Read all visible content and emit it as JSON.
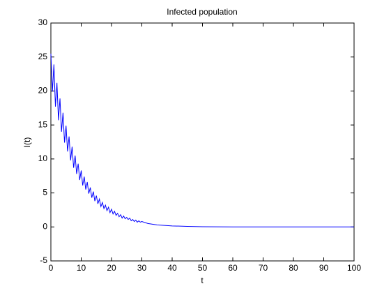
{
  "chart_data": {
    "type": "line",
    "title": "Infected population",
    "x_label": "t",
    "y_label": "I(t)",
    "x": [
      0,
      0.5,
      1,
      1.5,
      2,
      2.5,
      3,
      3.5,
      4,
      4.5,
      5,
      5.5,
      6,
      6.5,
      7,
      7.5,
      8,
      8.5,
      9,
      9.5,
      10,
      10.5,
      11,
      11.5,
      12,
      12.5,
      13,
      13.5,
      14,
      14.5,
      15,
      15.5,
      16,
      16.5,
      17,
      17.5,
      18,
      18.5,
      19,
      19.5,
      20,
      20.5,
      21,
      21.5,
      22,
      22.5,
      23,
      23.5,
      24,
      24.5,
      25,
      25.5,
      26,
      26.5,
      27,
      27.5,
      28,
      28.5,
      29,
      29.5,
      30,
      32,
      35,
      40,
      45,
      50,
      55,
      60,
      70,
      80,
      90,
      100
    ],
    "series": [
      {
        "name": "I(t)",
        "color": "#0000ff",
        "values": [
          25.5,
          19.9,
          23.9,
          17.7,
          21.2,
          15.7,
          18.9,
          14.0,
          16.8,
          12.4,
          14.9,
          11.1,
          13.3,
          9.8,
          11.8,
          8.7,
          10.5,
          7.8,
          9.3,
          6.9,
          8.3,
          6.1,
          7.4,
          5.5,
          6.6,
          4.9,
          5.8,
          4.3,
          5.2,
          3.8,
          4.6,
          3.4,
          4.1,
          3.0,
          3.6,
          2.7,
          3.2,
          2.4,
          2.9,
          2.1,
          2.6,
          1.9,
          2.3,
          1.7,
          2.0,
          1.5,
          1.8,
          1.3,
          1.6,
          1.2,
          1.4,
          1.1,
          1.3,
          0.9,
          1.1,
          0.8,
          1.0,
          0.7,
          0.9,
          0.7,
          0.8,
          0.5,
          0.3,
          0.15,
          0.08,
          0.03,
          0.02,
          0.01,
          0,
          0,
          0,
          0
        ]
      }
    ],
    "xlim": [
      0,
      100
    ],
    "xticks": [
      0,
      10,
      20,
      30,
      40,
      50,
      60,
      70,
      80,
      90,
      100
    ],
    "ylim": [
      -5,
      30
    ],
    "yticks": [
      -5,
      0,
      5,
      10,
      15,
      20,
      25,
      30
    ],
    "grid": false
  }
}
